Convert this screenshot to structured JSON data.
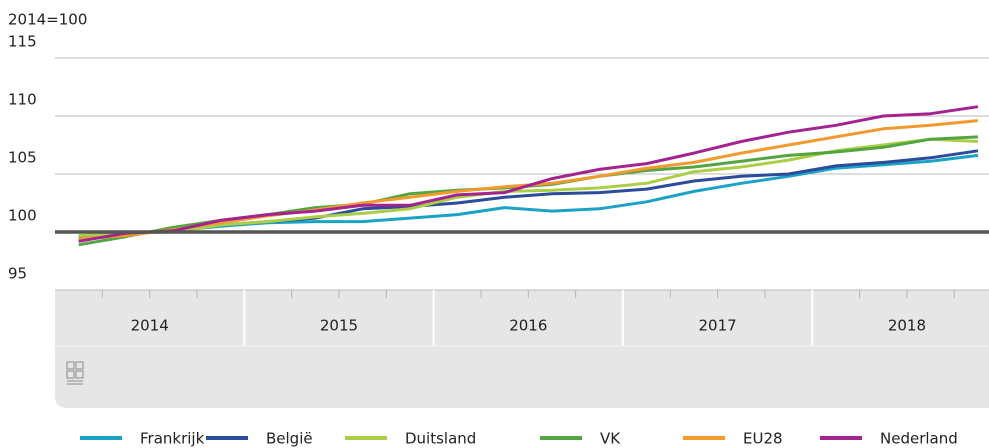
{
  "chart_data": {
    "type": "line",
    "y_label": "2014=100",
    "ylim": [
      95,
      115
    ],
    "yticks": [
      95,
      100,
      105,
      110,
      115
    ],
    "grid": true,
    "reference_line": 100,
    "year_labels": [
      "2014",
      "2015",
      "2016",
      "2017",
      "2018"
    ],
    "categories": [
      null,
      null,
      null,
      null,
      null,
      null,
      null,
      null,
      null,
      null,
      null,
      null,
      null,
      null,
      null,
      null,
      null,
      null,
      null,
      null
    ],
    "legend": "bottom",
    "series": [
      {
        "name": "Frankrijk",
        "color": "#1ba3c6",
        "values": [
          99.6,
          99.9,
          100.1,
          100.5,
          100.8,
          100.9,
          100.9,
          101.2,
          101.5,
          102.1,
          101.8,
          102.0,
          102.6,
          103.5,
          104.2,
          104.8,
          105.5,
          105.8,
          106.1,
          106.6
        ]
      },
      {
        "name": "België",
        "color": "#2b4c9b",
        "values": [
          99.3,
          99.8,
          100.2,
          100.6,
          100.9,
          101.2,
          102.0,
          102.2,
          102.5,
          103.0,
          103.3,
          103.4,
          103.7,
          104.4,
          104.8,
          105.0,
          105.7,
          106.0,
          106.4,
          107.0
        ]
      },
      {
        "name": "Duitsland",
        "color": "#aacf46",
        "values": [
          99.7,
          99.9,
          100.0,
          100.6,
          100.9,
          101.3,
          101.6,
          102.0,
          103.0,
          103.5,
          103.6,
          103.8,
          104.2,
          105.2,
          105.6,
          106.2,
          107.0,
          107.5,
          108.0,
          107.8
        ]
      },
      {
        "name": "VK",
        "color": "#53a541",
        "values": [
          98.9,
          99.6,
          100.4,
          101.0,
          101.5,
          102.1,
          102.4,
          103.3,
          103.6,
          103.8,
          104.1,
          104.8,
          105.3,
          105.6,
          106.1,
          106.6,
          106.9,
          107.3,
          108.0,
          108.2
        ]
      },
      {
        "name": "EU28",
        "color": "#f39a2f",
        "values": [
          99.4,
          99.7,
          100.2,
          100.8,
          101.4,
          101.9,
          102.5,
          103.0,
          103.5,
          103.9,
          104.2,
          104.8,
          105.5,
          106.0,
          106.8,
          107.5,
          108.2,
          108.9,
          109.2,
          109.6
        ]
      },
      {
        "name": "Nederland",
        "color": "#a4238f",
        "values": [
          99.2,
          99.9,
          100.1,
          101.0,
          101.5,
          101.8,
          102.3,
          102.3,
          103.2,
          103.4,
          104.6,
          105.4,
          105.9,
          106.8,
          107.8,
          108.6,
          109.2,
          110.0,
          110.2,
          110.8
        ]
      }
    ]
  }
}
